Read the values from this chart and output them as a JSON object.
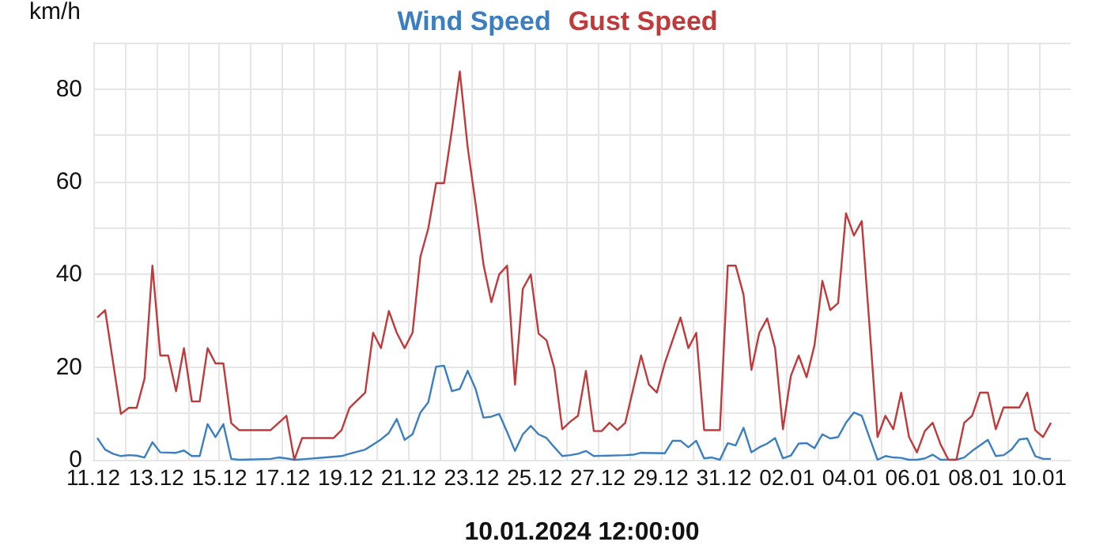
{
  "chart_data": {
    "type": "line",
    "xlabel": "10.01.2024 12:00:00",
    "ylabel": "km/h",
    "legend": "top",
    "grid": true,
    "marker": "none",
    "line_style": "solid",
    "xlim": [
      "2023-12-11",
      "2024-01-11"
    ],
    "xticks": [
      {
        "value": "2023-12-11",
        "label": "11.12"
      },
      {
        "value": "2023-12-12",
        "label": null
      },
      {
        "value": "2023-12-13",
        "label": "13.12"
      },
      {
        "value": "2023-12-14",
        "label": null
      },
      {
        "value": "2023-12-15",
        "label": "15.12"
      },
      {
        "value": "2023-12-16",
        "label": null
      },
      {
        "value": "2023-12-17",
        "label": "17.12"
      },
      {
        "value": "2023-12-18",
        "label": null
      },
      {
        "value": "2023-12-19",
        "label": "19.12"
      },
      {
        "value": "2023-12-20",
        "label": null
      },
      {
        "value": "2023-12-21",
        "label": "21.12"
      },
      {
        "value": "2023-12-22",
        "label": null
      },
      {
        "value": "2023-12-23",
        "label": "23.12"
      },
      {
        "value": "2023-12-24",
        "label": null
      },
      {
        "value": "2023-12-25",
        "label": "25.12"
      },
      {
        "value": "2023-12-26",
        "label": null
      },
      {
        "value": "2023-12-27",
        "label": "27.12"
      },
      {
        "value": "2023-12-28",
        "label": null
      },
      {
        "value": "2023-12-29",
        "label": "29.12"
      },
      {
        "value": "2023-12-30",
        "label": null
      },
      {
        "value": "2023-12-31",
        "label": "31.12"
      },
      {
        "value": "2024-01-01",
        "label": null
      },
      {
        "value": "2024-01-02",
        "label": "02.01"
      },
      {
        "value": "2024-01-03",
        "label": null
      },
      {
        "value": "2024-01-04",
        "label": "04.01"
      },
      {
        "value": "2024-01-05",
        "label": null
      },
      {
        "value": "2024-01-06",
        "label": "06.01"
      },
      {
        "value": "2024-01-07",
        "label": null
      },
      {
        "value": "2024-01-08",
        "label": "08.01"
      },
      {
        "value": "2024-01-09",
        "label": null
      },
      {
        "value": "2024-01-10",
        "label": "10.01"
      }
    ],
    "ylim": [
      0,
      90
    ],
    "yticks": [
      0,
      {
        "value": 10,
        "label": null
      },
      20,
      {
        "value": 30,
        "label": null
      },
      40,
      {
        "value": 50,
        "label": null
      },
      60,
      {
        "value": 70,
        "label": null
      },
      80,
      {
        "value": 90,
        "label": null
      }
    ],
    "series": [
      {
        "name": "Wind Speed",
        "color": "#3b7fc1",
        "x": [
          "2023-12-11T03:00",
          "2023-12-11T09:00",
          "2023-12-11T15:00",
          "2023-12-11T21:00",
          "2023-12-12T03:00",
          "2023-12-12T09:00",
          "2023-12-12T15:00",
          "2023-12-12T21:00",
          "2023-12-13T03:00",
          "2023-12-13T15:00",
          "2023-12-13T21:00",
          "2023-12-14T03:00",
          "2023-12-14T09:00",
          "2023-12-14T15:00",
          "2023-12-14T21:00",
          "2023-12-15T03:00",
          "2023-12-15T09:00",
          "2023-12-15T15:00",
          "2023-12-16T15:00",
          "2023-12-16T21:00",
          "2023-12-17T03:00",
          "2023-12-17T09:00",
          "2023-12-17T15:00",
          "2023-12-18T09:00",
          "2023-12-18T21:00",
          "2023-12-19T03:00",
          "2023-12-19T15:00",
          "2023-12-19T21:00",
          "2023-12-20T03:00",
          "2023-12-20T09:00",
          "2023-12-20T15:00",
          "2023-12-20T21:00",
          "2023-12-21T03:00",
          "2023-12-21T09:00",
          "2023-12-21T15:00",
          "2023-12-21T21:00",
          "2023-12-22T03:00",
          "2023-12-22T09:00",
          "2023-12-22T15:00",
          "2023-12-22T21:00",
          "2023-12-23T03:00",
          "2023-12-23T09:00",
          "2023-12-23T15:00",
          "2023-12-23T21:00",
          "2023-12-24T03:00",
          "2023-12-24T09:00",
          "2023-12-24T15:00",
          "2023-12-24T21:00",
          "2023-12-25T03:00",
          "2023-12-25T09:00",
          "2023-12-25T15:00",
          "2023-12-25T21:00",
          "2023-12-26T03:00",
          "2023-12-26T09:00",
          "2023-12-26T15:00",
          "2023-12-26T21:00",
          "2023-12-27T21:00",
          "2023-12-28T03:00",
          "2023-12-28T09:00",
          "2023-12-29T03:00",
          "2023-12-29T09:00",
          "2023-12-29T15:00",
          "2023-12-29T21:00",
          "2023-12-30T03:00",
          "2023-12-30T09:00",
          "2023-12-30T15:00",
          "2023-12-30T21:00",
          "2023-12-31T03:00",
          "2023-12-31T09:00",
          "2023-12-31T15:00",
          "2023-12-31T21:00",
          "2024-01-01T03:00",
          "2024-01-01T09:00",
          "2024-01-01T15:00",
          "2024-01-01T21:00",
          "2024-01-02T03:00",
          "2024-01-02T09:00",
          "2024-01-02T15:00",
          "2024-01-02T21:00",
          "2024-01-03T03:00",
          "2024-01-03T09:00",
          "2024-01-03T15:00",
          "2024-01-03T21:00",
          "2024-01-04T03:00",
          "2024-01-04T09:00",
          "2024-01-04T15:00",
          "2024-01-04T21:00",
          "2024-01-05T03:00",
          "2024-01-05T09:00",
          "2024-01-05T15:00",
          "2024-01-05T21:00",
          "2024-01-06T03:00",
          "2024-01-06T09:00",
          "2024-01-06T15:00",
          "2024-01-06T21:00",
          "2024-01-07T03:00",
          "2024-01-07T09:00",
          "2024-01-07T15:00",
          "2024-01-07T21:00",
          "2024-01-08T03:00",
          "2024-01-08T09:00",
          "2024-01-08T15:00",
          "2024-01-08T21:00",
          "2024-01-09T03:00",
          "2024-01-09T09:00",
          "2024-01-09T15:00",
          "2024-01-09T21:00",
          "2024-01-10T03:00",
          "2024-01-10T09:00"
        ],
        "values": [
          4.7,
          2.2,
          1.3,
          0.8,
          1,
          0.9,
          0.5,
          3.8,
          1.6,
          1.5,
          2,
          0.8,
          0.8,
          7.7,
          4.9,
          7.7,
          0.2,
          0,
          0.2,
          0.5,
          0.3,
          0,
          0.1,
          0.5,
          0.8,
          1.3,
          2.2,
          3.3,
          4.4,
          5.8,
          8.8,
          4.3,
          5.5,
          10.2,
          12.4,
          20.1,
          20.3,
          14.8,
          15.3,
          19.2,
          15.3,
          9.1,
          9.3,
          9.9,
          6,
          1.9,
          5.5,
          7.3,
          5.5,
          4.7,
          2.7,
          0.8,
          1,
          1.3,
          1.9,
          0.8,
          1,
          1.1,
          1.5,
          1.4,
          4.1,
          4.1,
          2.7,
          4.1,
          0.3,
          0.5,
          0,
          3.6,
          3.1,
          6.9,
          1.6,
          2.7,
          3.5,
          4.7,
          0.3,
          0.9,
          3.5,
          3.6,
          2.5,
          5.5,
          4.6,
          4.9,
          8,
          10.2,
          9.5,
          4.7,
          0,
          0.8,
          0.5,
          0.4,
          0,
          0,
          0.3,
          1.1,
          0,
          0,
          0,
          0.5,
          1.9,
          3.1,
          4.3,
          0.8,
          1,
          2.2,
          4.4,
          4.6,
          0.8,
          0.2,
          0.2
        ]
      },
      {
        "name": "Gust Speed",
        "color": "#c0393b",
        "x": [
          "2023-12-11T03:00",
          "2023-12-11T09:00",
          "2023-12-11T21:00",
          "2023-12-12T03:00",
          "2023-12-12T09:00",
          "2023-12-12T15:00",
          "2023-12-12T21:00",
          "2023-12-13T03:00",
          "2023-12-13T09:00",
          "2023-12-13T15:00",
          "2023-12-13T21:00",
          "2023-12-14T03:00",
          "2023-12-14T09:00",
          "2023-12-14T15:00",
          "2023-12-14T21:00",
          "2023-12-15T03:00",
          "2023-12-15T09:00",
          "2023-12-15T15:00",
          "2023-12-16T15:00",
          "2023-12-17T03:00",
          "2023-12-17T09:00",
          "2023-12-17T15:00",
          "2023-12-18T15:00",
          "2023-12-18T21:00",
          "2023-12-19T03:00",
          "2023-12-19T15:00",
          "2023-12-19T21:00",
          "2023-12-20T03:00",
          "2023-12-20T09:00",
          "2023-12-20T15:00",
          "2023-12-20T21:00",
          "2023-12-21T03:00",
          "2023-12-21T09:00",
          "2023-12-21T15:00",
          "2023-12-21T21:00",
          "2023-12-22T03:00",
          "2023-12-22T09:00",
          "2023-12-22T15:00",
          "2023-12-22T21:00",
          "2023-12-23T03:00",
          "2023-12-23T09:00",
          "2023-12-23T15:00",
          "2023-12-23T21:00",
          "2023-12-24T03:00",
          "2023-12-24T09:00",
          "2023-12-24T15:00",
          "2023-12-24T21:00",
          "2023-12-25T03:00",
          "2023-12-25T09:00",
          "2023-12-25T15:00",
          "2023-12-25T21:00",
          "2023-12-26T03:00",
          "2023-12-26T09:00",
          "2023-12-26T15:00",
          "2023-12-26T21:00",
          "2023-12-27T03:00",
          "2023-12-27T09:00",
          "2023-12-27T15:00",
          "2023-12-27T21:00",
          "2023-12-28T03:00",
          "2023-12-28T09:00",
          "2023-12-28T15:00",
          "2023-12-28T21:00",
          "2023-12-29T03:00",
          "2023-12-29T09:00",
          "2023-12-29T15:00",
          "2023-12-29T21:00",
          "2023-12-30T03:00",
          "2023-12-30T09:00",
          "2023-12-30T21:00",
          "2023-12-31T03:00",
          "2023-12-31T09:00",
          "2023-12-31T15:00",
          "2023-12-31T21:00",
          "2024-01-01T03:00",
          "2024-01-01T09:00",
          "2024-01-01T15:00",
          "2024-01-01T21:00",
          "2024-01-02T03:00",
          "2024-01-02T09:00",
          "2024-01-02T15:00",
          "2024-01-02T21:00",
          "2024-01-03T03:00",
          "2024-01-03T09:00",
          "2024-01-03T15:00",
          "2024-01-03T21:00",
          "2024-01-04T03:00",
          "2024-01-04T09:00",
          "2024-01-04T15:00",
          "2024-01-04T21:00",
          "2024-01-05T03:00",
          "2024-01-05T09:00",
          "2024-01-05T15:00",
          "2024-01-05T21:00",
          "2024-01-06T03:00",
          "2024-01-06T09:00",
          "2024-01-06T15:00",
          "2024-01-06T21:00",
          "2024-01-07T03:00",
          "2024-01-07T09:00",
          "2024-01-07T15:00",
          "2024-01-07T21:00",
          "2024-01-08T03:00",
          "2024-01-08T09:00",
          "2024-01-08T15:00",
          "2024-01-08T21:00",
          "2024-01-09T09:00",
          "2024-01-09T15:00",
          "2024-01-09T21:00",
          "2024-01-10T03:00",
          "2024-01-10T09:00"
        ],
        "values": [
          30.7,
          32.3,
          9.9,
          11.2,
          11.2,
          17.5,
          41.9,
          22.5,
          22.5,
          14.8,
          24.1,
          12.6,
          12.6,
          24.1,
          20.8,
          20.8,
          7.9,
          6.4,
          6.4,
          9.5,
          0,
          4.7,
          4.7,
          6.4,
          11.2,
          14.5,
          27.4,
          24.1,
          32.1,
          27.4,
          24.1,
          27.4,
          43.8,
          49.9,
          59.7,
          59.7,
          71.2,
          83.8,
          67.4,
          55.3,
          42.2,
          34,
          40,
          41.9,
          16.2,
          36.9,
          40,
          27.2,
          25.8,
          19.7,
          6.6,
          8.2,
          9.5,
          19.2,
          6.2,
          6.2,
          8,
          6.4,
          8,
          15.3,
          22.5,
          16.2,
          14.5,
          20.8,
          25.8,
          30.7,
          24.1,
          27.4,
          6.4,
          6.4,
          41.9,
          41.9,
          35.6,
          19.4,
          27.4,
          30.5,
          24.1,
          6.6,
          18.1,
          22.5,
          17.8,
          24.7,
          38.6,
          32.3,
          33.8,
          53.2,
          48.4,
          51.5,
          28.5,
          4.9,
          9.5,
          6.6,
          14.5,
          4.9,
          1.6,
          6.2,
          8,
          3.3,
          0,
          0,
          8,
          9.5,
          14.5,
          14.5,
          6.6,
          11.3,
          11.3,
          14.5,
          6.4,
          4.9,
          8
        ]
      }
    ]
  }
}
